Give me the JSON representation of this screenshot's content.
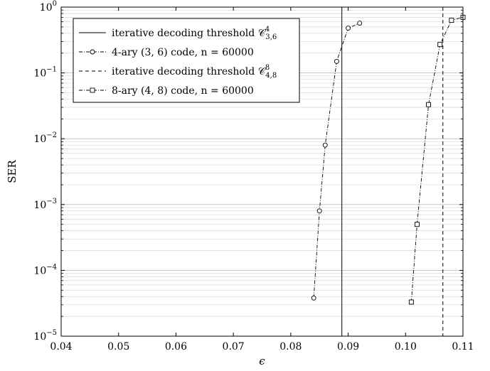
{
  "chart_data": {
    "type": "line",
    "xlabel": "ϵ",
    "ylabel": "SER",
    "xlim": [
      0.04,
      0.11
    ],
    "ylim": [
      1e-05,
      1
    ],
    "yscale": "log",
    "grid": "y-major-and-minor",
    "legend_position": "top-left",
    "x_ticks": [
      {
        "value": 0.04,
        "label": "0.04"
      },
      {
        "value": 0.05,
        "label": "0.05"
      },
      {
        "value": 0.06,
        "label": "0.06"
      },
      {
        "value": 0.07,
        "label": "0.07"
      },
      {
        "value": 0.08,
        "label": "0.08"
      },
      {
        "value": 0.09,
        "label": "0.09"
      },
      {
        "value": 0.1,
        "label": "0.10"
      },
      {
        "value": 0.11,
        "label": "0.11"
      }
    ],
    "y_ticks": [
      {
        "value": 1e-05,
        "base": "10",
        "exp": "−5"
      },
      {
        "value": 0.0001,
        "base": "10",
        "exp": "−4"
      },
      {
        "value": 0.001,
        "base": "10",
        "exp": "−3"
      },
      {
        "value": 0.01,
        "base": "10",
        "exp": "−2"
      },
      {
        "value": 0.1,
        "base": "10",
        "exp": "−1"
      },
      {
        "value": 1,
        "base": "10",
        "exp": "0"
      }
    ],
    "thresholds": [
      {
        "name": "iterative decoding threshold 𝒞⁴₃,₆",
        "legend_main": "iterative decoding threshold 𝒞",
        "legend_sup": "4",
        "legend_sub": "3,6",
        "x": 0.0889,
        "style": "solid"
      },
      {
        "name": "iterative decoding threshold 𝒞⁸₄,₈",
        "legend_main": "iterative decoding threshold 𝒞",
        "legend_sup": "8",
        "legend_sub": "4,8",
        "x": 0.1065,
        "style": "dashed"
      }
    ],
    "series": [
      {
        "name": "4-ary (3, 6) code, n = 60000",
        "legend_text": "4-ary (3, 6) code, n = 60000",
        "marker": "circle",
        "style": "dashdot",
        "points": [
          {
            "x": 0.084,
            "y": 3.8e-05
          },
          {
            "x": 0.085,
            "y": 0.0008
          },
          {
            "x": 0.086,
            "y": 0.008
          },
          {
            "x": 0.088,
            "y": 0.15
          },
          {
            "x": 0.09,
            "y": 0.48
          },
          {
            "x": 0.092,
            "y": 0.57
          }
        ]
      },
      {
        "name": "8-ary (4, 8) code, n = 60000",
        "legend_text": "8-ary (4, 8) code, n = 60000",
        "marker": "square",
        "style": "dashdot",
        "points": [
          {
            "x": 0.101,
            "y": 3.3e-05
          },
          {
            "x": 0.102,
            "y": 0.0005
          },
          {
            "x": 0.104,
            "y": 0.033
          },
          {
            "x": 0.106,
            "y": 0.27
          },
          {
            "x": 0.108,
            "y": 0.63
          },
          {
            "x": 0.11,
            "y": 0.7
          }
        ]
      }
    ]
  }
}
